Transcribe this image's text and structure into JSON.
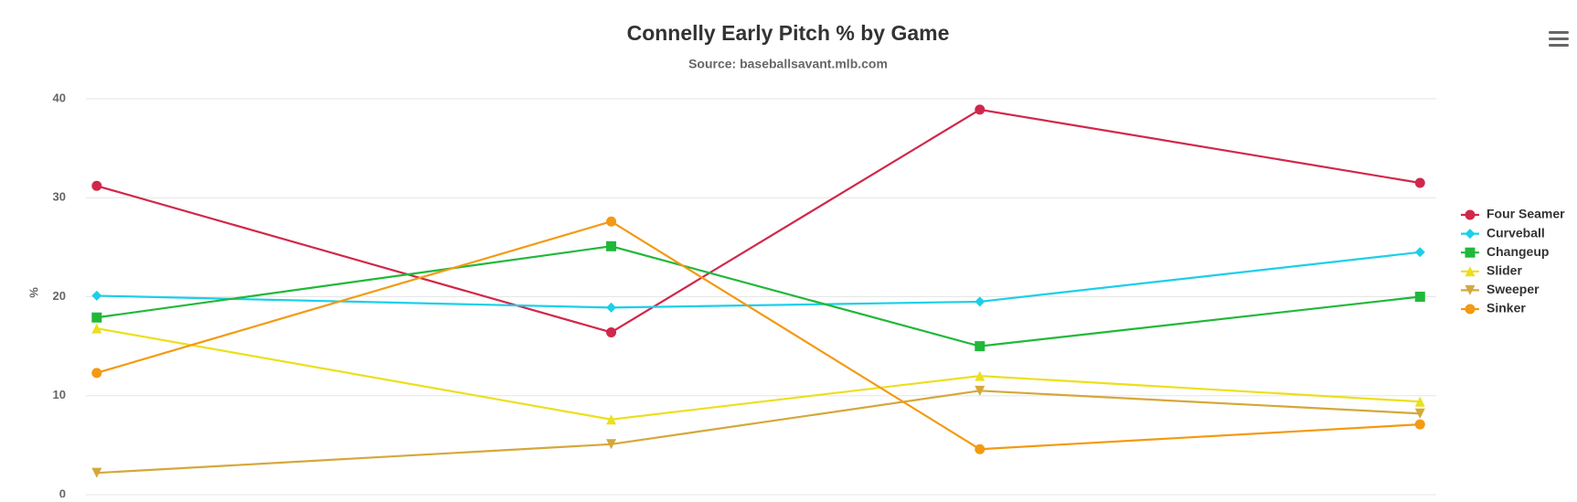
{
  "chart_data": {
    "type": "line",
    "title": "Connelly Early Pitch % by Game",
    "subtitle": "Source: baseballsavant.mlb.com",
    "y_label": "%",
    "categories": [
      null,
      null,
      null,
      null
    ],
    "ylim": [
      0,
      40
    ],
    "yticks": [
      0,
      10,
      20,
      30,
      40
    ],
    "grid": true,
    "legend": "right",
    "series": [
      {
        "name": "Four Seamer",
        "color": "#d0284a",
        "marker": "circle",
        "values": [
          31.2,
          16.4,
          38.9,
          31.5
        ]
      },
      {
        "name": "Curveball",
        "color": "#1ccfe8",
        "marker": "diamond",
        "values": [
          20.1,
          18.9,
          19.5,
          24.5
        ]
      },
      {
        "name": "Changeup",
        "color": "#20b83a",
        "marker": "square",
        "values": [
          17.9,
          25.1,
          15.0,
          20.0
        ]
      },
      {
        "name": "Slider",
        "color": "#ecdf1c",
        "marker": "triangle",
        "values": [
          16.8,
          7.6,
          12.0,
          9.4
        ]
      },
      {
        "name": "Sweeper",
        "color": "#d4a83a",
        "marker": "triangle-down",
        "values": [
          2.2,
          5.1,
          10.5,
          8.2
        ]
      },
      {
        "name": "Sinker",
        "color": "#f39a12",
        "marker": "circle",
        "values": [
          12.3,
          27.6,
          4.6,
          7.1
        ]
      }
    ]
  }
}
